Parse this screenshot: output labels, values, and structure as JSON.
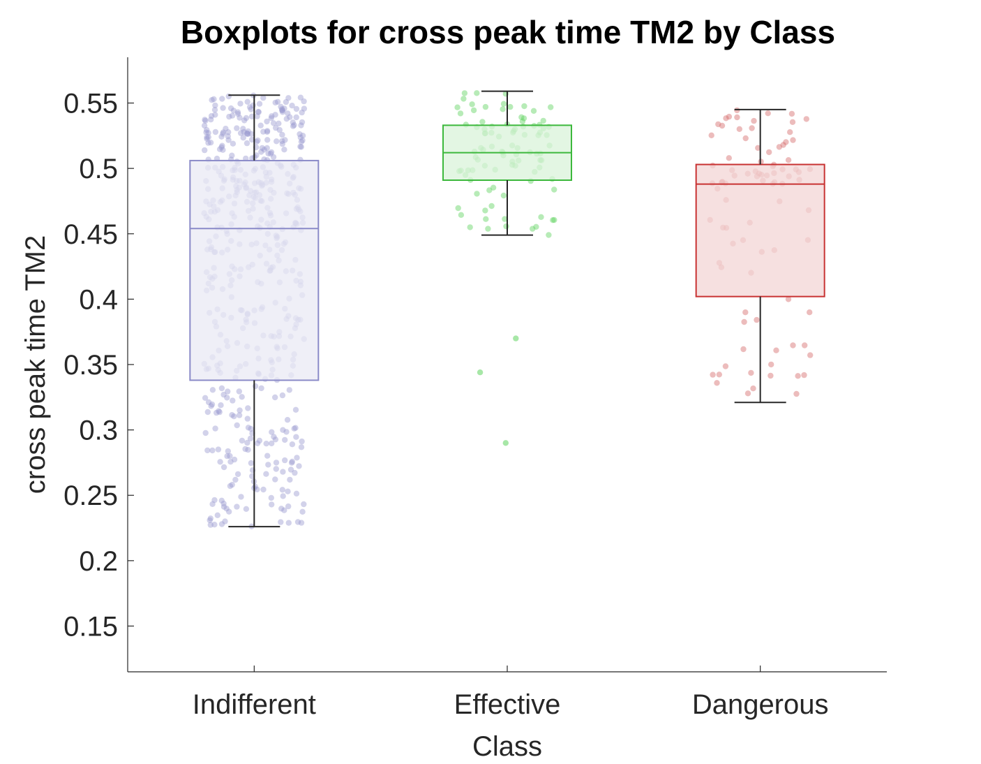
{
  "chart_data": {
    "type": "box",
    "title": "Boxplots for cross peak time TM2 by Class",
    "xlabel": "Class",
    "ylabel": "cross peak time TM2",
    "ylim": [
      0.115,
      0.585
    ],
    "yticks": [
      "0.15",
      "0.2",
      "0.25",
      "0.3",
      "0.35",
      "0.4",
      "0.45",
      "0.5",
      "0.55"
    ],
    "ytick_values": [
      0.15,
      0.2,
      0.25,
      0.3,
      0.35,
      0.4,
      0.45,
      0.5,
      0.55
    ],
    "categories": [
      "Indifferent",
      "Effective",
      "Dangerous"
    ],
    "grid": false,
    "boxes": [
      {
        "category": "Indifferent",
        "whisker_low": 0.226,
        "q1": 0.338,
        "median": 0.454,
        "q3": 0.506,
        "whisker_high": 0.556,
        "outliers": [],
        "color": "#8a8ac8",
        "fill": "#e9e9f4",
        "point_color": "#9c9cd0",
        "jitter_count": 520
      },
      {
        "category": "Effective",
        "whisker_low": 0.449,
        "q1": 0.491,
        "median": 0.512,
        "q3": 0.533,
        "whisker_high": 0.559,
        "outliers": [
          0.37,
          0.344,
          0.29
        ],
        "color": "#3cb83c",
        "fill": "#d9f3d9",
        "point_color": "#5fd35f",
        "jitter_count": 95
      },
      {
        "category": "Dangerous",
        "whisker_low": 0.321,
        "q1": 0.402,
        "median": 0.488,
        "q3": 0.503,
        "whisker_high": 0.545,
        "outliers": [],
        "color": "#c83232",
        "fill": "#f3d6d6",
        "point_color": "#d46a6a",
        "jitter_count": 90
      }
    ]
  }
}
